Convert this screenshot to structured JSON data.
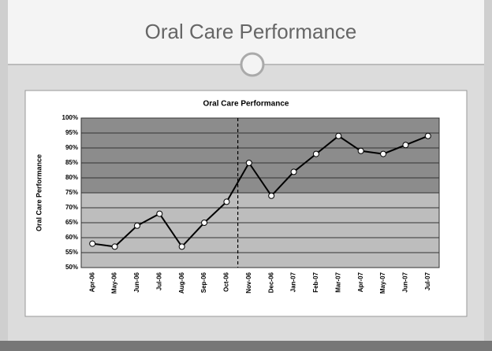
{
  "slide_title": "Oral Care Performance",
  "chart_data": {
    "type": "line",
    "title": "Oral Care Performance",
    "y_label": "Oral Care Performance",
    "categories": [
      "Apr-06",
      "May-06",
      "Jun-06",
      "Jul-06",
      "Aug-06",
      "Sep-06",
      "Oct-06",
      "Nov-06",
      "Dec-06",
      "Jan-07",
      "Feb-07",
      "Mar-07",
      "Apr-07",
      "May-07",
      "Jun-07",
      "Jul-07"
    ],
    "series": [
      {
        "name": "Oral Care Performance",
        "color": "#000000",
        "values": [
          58,
          57,
          64,
          68,
          57,
          65,
          72,
          85,
          74,
          82,
          88,
          94,
          89,
          88,
          91,
          94
        ]
      }
    ],
    "ylim": [
      50,
      100
    ],
    "yticks": [
      {
        "value": 50,
        "label": "50%"
      },
      {
        "value": 55,
        "label": "55%"
      },
      {
        "value": 60,
        "label": "60%"
      },
      {
        "value": 65,
        "label": "65%"
      },
      {
        "value": 70,
        "label": "70%"
      },
      {
        "value": 75,
        "label": "75%"
      },
      {
        "value": 80,
        "label": "80%"
      },
      {
        "value": 85,
        "label": "85%"
      },
      {
        "value": 90,
        "label": "90%"
      },
      {
        "value": 95,
        "label": "95%"
      },
      {
        "value": 100,
        "label": "100%"
      }
    ],
    "grid": true
  }
}
